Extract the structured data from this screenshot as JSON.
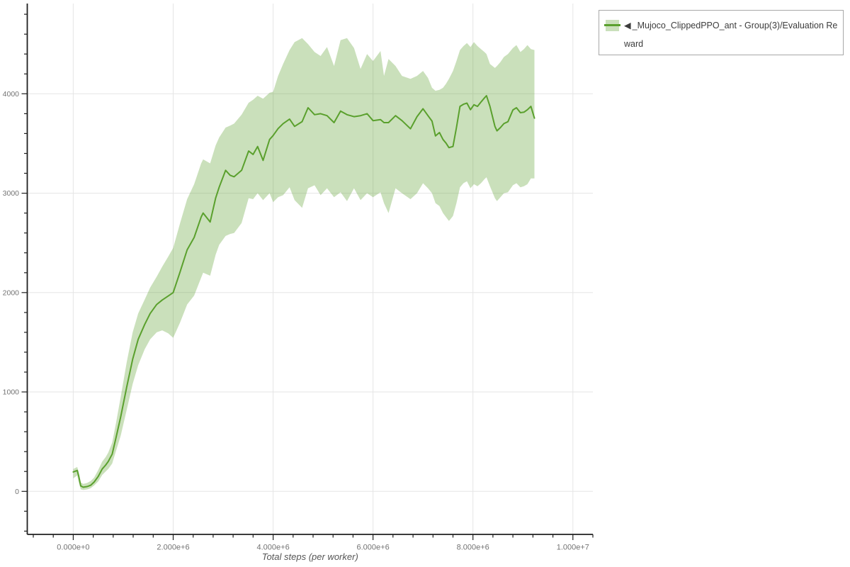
{
  "legend": {
    "collapse_icon": "◀",
    "label": "_Mujoco_ClippedPPO_ant - Group(3)/Evaluation Reward"
  },
  "colors": {
    "line": "#5aa02d",
    "band_fill": "rgba(90,160,45,0.32)",
    "grid": "#e5e5e5",
    "axis": "#1f1f1f",
    "tick_label": "#737373",
    "axis_title": "#565656",
    "legend_border": "#a8a8a8",
    "legend_text": "#3c3c3c"
  },
  "chart_data": {
    "type": "line",
    "title": "",
    "xlabel": "Total steps (per worker)",
    "ylabel": "",
    "grid": true,
    "legend_position": "top-right",
    "x_unit": "steps (shown in millions)",
    "xlim_millions": [
      -0.92,
      10.4
    ],
    "ylim": [
      -433,
      4908
    ],
    "x_major_ticks_millions": [
      0,
      2,
      4,
      6,
      8,
      10
    ],
    "x_tick_labels": [
      "0.000e+0",
      "2.000e+6",
      "4.000e+6",
      "6.000e+6",
      "8.000e+6",
      "1.000e+7"
    ],
    "x_minor_step_millions": 0.4,
    "y_major_ticks": [
      0,
      1000,
      2000,
      3000,
      4000
    ],
    "y_tick_labels": [
      "0",
      "1000",
      "2000",
      "3000",
      "4000"
    ],
    "y_minor_step": 200,
    "series": [
      {
        "name": "_Mujoco_ClippedPPO_ant - Group(3)/Evaluation Reward",
        "color": "#5aa02d",
        "band_opacity": 0.32,
        "line_width": 2,
        "x_millions": [
          0,
          0.08,
          0.11,
          0.15,
          0.2,
          0.28,
          0.35,
          0.42,
          0.5,
          0.58,
          0.65,
          0.7,
          0.78,
          0.86,
          0.95,
          1.07,
          1.19,
          1.3,
          1.43,
          1.54,
          1.67,
          1.78,
          1.9,
          2.0,
          2.14,
          2.28,
          2.42,
          2.56,
          2.6,
          2.74,
          2.85,
          2.92,
          3.05,
          3.14,
          3.22,
          3.37,
          3.51,
          3.6,
          3.69,
          3.8,
          3.93,
          4.0,
          4.1,
          4.2,
          4.33,
          4.43,
          4.58,
          4.7,
          4.83,
          4.95,
          5.08,
          5.22,
          5.35,
          5.48,
          5.62,
          5.75,
          5.88,
          6.0,
          6.15,
          6.22,
          6.31,
          6.45,
          6.58,
          6.75,
          6.88,
          7.0,
          7.1,
          7.18,
          7.25,
          7.33,
          7.4,
          7.46,
          7.52,
          7.6,
          7.67,
          7.74,
          7.81,
          7.88,
          7.95,
          8.02,
          8.09,
          8.16,
          8.23,
          8.27,
          8.34,
          8.44,
          8.48,
          8.55,
          8.62,
          8.7,
          8.8,
          8.87,
          8.95,
          9.02,
          9.09,
          9.16,
          9.23
        ],
        "mean": [
          195,
          210,
          150,
          55,
          42,
          48,
          62,
          95,
          150,
          225,
          265,
          300,
          375,
          550,
          750,
          1050,
          1330,
          1530,
          1680,
          1790,
          1880,
          1925,
          1965,
          2000,
          2210,
          2430,
          2555,
          2760,
          2800,
          2710,
          2950,
          3060,
          3230,
          3180,
          3165,
          3230,
          3424,
          3390,
          3470,
          3330,
          3540,
          3580,
          3650,
          3700,
          3745,
          3672,
          3720,
          3860,
          3790,
          3800,
          3780,
          3710,
          3826,
          3790,
          3770,
          3780,
          3800,
          3730,
          3740,
          3710,
          3710,
          3780,
          3730,
          3648,
          3770,
          3850,
          3780,
          3725,
          3576,
          3610,
          3540,
          3505,
          3458,
          3470,
          3660,
          3873,
          3895,
          3906,
          3840,
          3890,
          3873,
          3917,
          3958,
          3981,
          3873,
          3672,
          3627,
          3660,
          3700,
          3719,
          3838,
          3860,
          3810,
          3815,
          3840,
          3873,
          3755
        ],
        "band_lower": [
          130,
          160,
          90,
          20,
          15,
          20,
          32,
          60,
          100,
          165,
          200,
          225,
          280,
          415,
          560,
          820,
          1080,
          1270,
          1430,
          1530,
          1600,
          1620,
          1590,
          1545,
          1700,
          1880,
          1970,
          2150,
          2200,
          2170,
          2380,
          2480,
          2570,
          2590,
          2600,
          2700,
          2950,
          2940,
          3000,
          2930,
          3000,
          2910,
          2960,
          2980,
          3060,
          2930,
          2852,
          3050,
          3080,
          2980,
          3050,
          2960,
          3010,
          2920,
          3050,
          2930,
          3000,
          2960,
          3010,
          2900,
          2800,
          3050,
          3000,
          2940,
          3000,
          3100,
          3050,
          3000,
          2900,
          2870,
          2800,
          2760,
          2720,
          2770,
          2900,
          3060,
          3100,
          3120,
          3050,
          3090,
          3070,
          3100,
          3140,
          3160,
          3070,
          2950,
          2920,
          2960,
          3000,
          3010,
          3080,
          3100,
          3060,
          3070,
          3090,
          3148,
          3148
        ],
        "band_upper": [
          225,
          245,
          195,
          90,
          75,
          85,
          105,
          140,
          215,
          300,
          345,
          390,
          490,
          700,
          950,
          1300,
          1600,
          1790,
          1930,
          2050,
          2160,
          2260,
          2360,
          2450,
          2700,
          2940,
          3090,
          3300,
          3340,
          3300,
          3480,
          3560,
          3660,
          3680,
          3700,
          3790,
          3910,
          3940,
          3980,
          3950,
          4010,
          4020,
          4180,
          4300,
          4440,
          4520,
          4560,
          4500,
          4420,
          4380,
          4470,
          4280,
          4540,
          4560,
          4460,
          4250,
          4400,
          4330,
          4430,
          4180,
          4350,
          4280,
          4180,
          4150,
          4180,
          4230,
          4160,
          4060,
          4030,
          4040,
          4060,
          4100,
          4150,
          4230,
          4330,
          4440,
          4480,
          4510,
          4470,
          4520,
          4480,
          4450,
          4420,
          4400,
          4300,
          4260,
          4280,
          4320,
          4370,
          4400,
          4460,
          4490,
          4420,
          4450,
          4490,
          4450,
          4440
        ]
      }
    ]
  }
}
